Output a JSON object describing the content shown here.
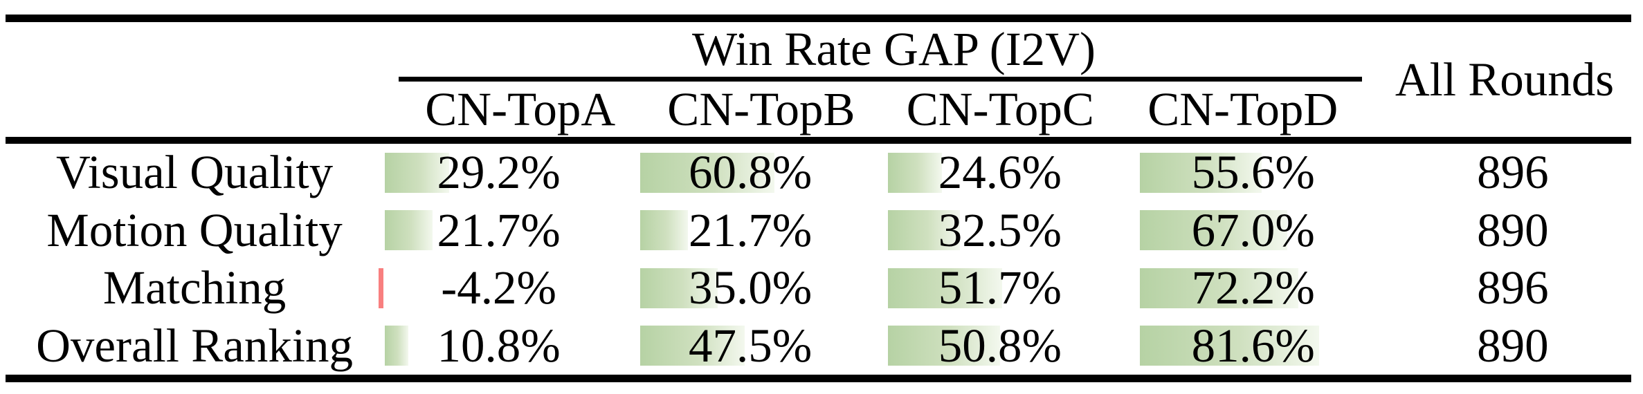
{
  "table": {
    "group_header": "Win Rate GAP (I2V)",
    "columns": [
      "CN-TopA",
      "CN-TopB",
      "CN-TopC",
      "CN-TopD"
    ],
    "all_rounds_header": "All Rounds",
    "rows": [
      {
        "label": "Visual Quality",
        "cells": [
          {
            "text": "29.2%",
            "value": 29.2
          },
          {
            "text": "60.8%",
            "value": 60.8
          },
          {
            "text": "24.6%",
            "value": 24.6
          },
          {
            "text": "55.6%",
            "value": 55.6
          }
        ],
        "all_rounds": "896"
      },
      {
        "label": "Motion Quality",
        "cells": [
          {
            "text": "21.7%",
            "value": 21.7
          },
          {
            "text": "21.7%",
            "value": 21.7
          },
          {
            "text": "32.5%",
            "value": 32.5
          },
          {
            "text": "67.0%",
            "value": 67.0
          }
        ],
        "all_rounds": "890"
      },
      {
        "label": "Matching",
        "cells": [
          {
            "text": "-4.2%",
            "value": -4.2
          },
          {
            "text": "35.0%",
            "value": 35.0
          },
          {
            "text": "51.7%",
            "value": 51.7
          },
          {
            "text": "72.2%",
            "value": 72.2
          }
        ],
        "all_rounds": "896"
      },
      {
        "label": "Overall Ranking",
        "cells": [
          {
            "text": "10.8%",
            "value": 10.8
          },
          {
            "text": "47.5%",
            "value": 47.5
          },
          {
            "text": "50.8%",
            "value": 50.8
          },
          {
            "text": "81.6%",
            "value": 81.6
          }
        ],
        "all_rounds": "890"
      }
    ]
  },
  "chart_data": {
    "type": "table",
    "title": "Win Rate GAP (I2V)",
    "categories": [
      "Visual Quality",
      "Motion Quality",
      "Matching",
      "Overall Ranking"
    ],
    "series": [
      {
        "name": "CN-TopA",
        "values": [
          29.2,
          21.7,
          -4.2,
          10.8
        ]
      },
      {
        "name": "CN-TopB",
        "values": [
          60.8,
          21.7,
          35.0,
          47.5
        ]
      },
      {
        "name": "CN-TopC",
        "values": [
          24.6,
          32.5,
          51.7,
          50.8
        ]
      },
      {
        "name": "CN-TopD",
        "values": [
          55.6,
          67.0,
          72.2,
          81.6
        ]
      }
    ],
    "all_rounds_column": {
      "label": "All Rounds",
      "values": [
        896,
        890,
        896,
        890
      ]
    },
    "unit": "%",
    "bar_style": "in-cell horizontal data bars, green gradient for positive, red for negative"
  },
  "colors": {
    "background": "#ffffff",
    "text": "#000000",
    "rule": "#000000",
    "bar_positive_start": "#b6d2a4",
    "bar_positive_end": "#f3f8ee",
    "bar_negative": "#f87f7f"
  }
}
